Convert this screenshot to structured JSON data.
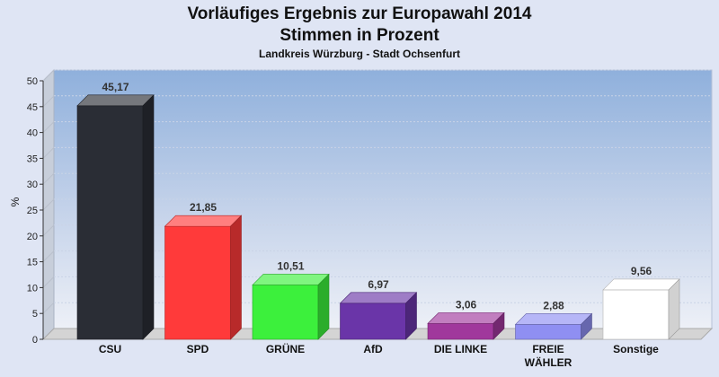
{
  "chart_data": {
    "type": "bar",
    "title": "Vorläufiges Ergebnis zur Europawahl 2014",
    "title2": "Stimmen in Prozent",
    "subtitle": "Landkreis Würzburg - Stadt Ochsenfurt",
    "ylabel": "%",
    "xlabel": "",
    "ylim": [
      0,
      50
    ],
    "yticks": [
      0,
      5,
      10,
      15,
      20,
      25,
      30,
      35,
      40,
      45,
      50
    ],
    "categories": [
      "CSU",
      "SPD",
      "GRÜNE",
      "AfD",
      "DIE LINKE",
      "FREIE WÄHLER",
      "Sonstige"
    ],
    "category_lines": [
      [
        "CSU"
      ],
      [
        "SPD"
      ],
      [
        "GRÜNE"
      ],
      [
        "AfD"
      ],
      [
        "DIE LINKE"
      ],
      [
        "FREIE",
        "WÄHLER"
      ],
      [
        "Sonstige"
      ]
    ],
    "values": [
      45.17,
      21.85,
      10.51,
      6.97,
      3.06,
      2.88,
      9.56
    ],
    "value_labels": [
      "45,17",
      "21,85",
      "10,51",
      "6,97",
      "3,06",
      "2,88",
      "9,56"
    ],
    "colors": [
      "#2a2d35",
      "#ff3a3a",
      "#3cf03c",
      "#6a35a8",
      "#a0389c",
      "#8f8ff2",
      "#ffffff"
    ],
    "grid": true,
    "legend": "none"
  }
}
